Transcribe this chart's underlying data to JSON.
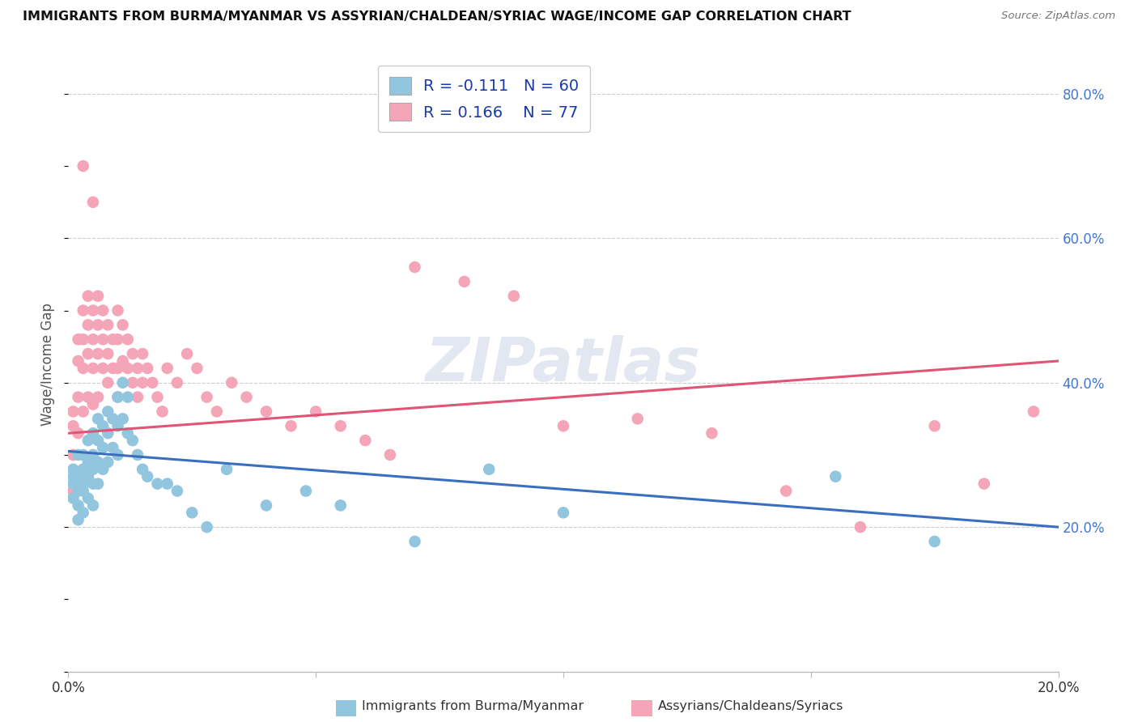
{
  "title": "IMMIGRANTS FROM BURMA/MYANMAR VS ASSYRIAN/CHALDEAN/SYRIAC WAGE/INCOME GAP CORRELATION CHART",
  "source": "Source: ZipAtlas.com",
  "ylabel": "Wage/Income Gap",
  "xlim": [
    0.0,
    0.2
  ],
  "ylim": [
    0.0,
    0.85
  ],
  "right_yticks": [
    0.2,
    0.4,
    0.6,
    0.8
  ],
  "right_yticklabels": [
    "20.0%",
    "40.0%",
    "60.0%",
    "80.0%"
  ],
  "xticks": [
    0.0,
    0.05,
    0.1,
    0.15,
    0.2
  ],
  "xticklabels": [
    "0.0%",
    "",
    "",
    "",
    "20.0%"
  ],
  "blue_R": -0.111,
  "blue_N": 60,
  "pink_R": 0.166,
  "pink_N": 77,
  "blue_color": "#92c5de",
  "pink_color": "#f4a6b8",
  "blue_line_color": "#3a6fbf",
  "pink_line_color": "#e05575",
  "watermark": "ZIPatlas",
  "blue_scatter_x": [
    0.001,
    0.001,
    0.001,
    0.001,
    0.002,
    0.002,
    0.002,
    0.002,
    0.002,
    0.003,
    0.003,
    0.003,
    0.003,
    0.003,
    0.004,
    0.004,
    0.004,
    0.004,
    0.005,
    0.005,
    0.005,
    0.005,
    0.005,
    0.006,
    0.006,
    0.006,
    0.006,
    0.007,
    0.007,
    0.007,
    0.008,
    0.008,
    0.008,
    0.009,
    0.009,
    0.01,
    0.01,
    0.01,
    0.011,
    0.011,
    0.012,
    0.012,
    0.013,
    0.014,
    0.015,
    0.016,
    0.018,
    0.02,
    0.022,
    0.025,
    0.028,
    0.032,
    0.04,
    0.048,
    0.055,
    0.07,
    0.085,
    0.1,
    0.155,
    0.175
  ],
  "blue_scatter_y": [
    0.28,
    0.27,
    0.26,
    0.24,
    0.3,
    0.27,
    0.25,
    0.23,
    0.21,
    0.3,
    0.28,
    0.26,
    0.25,
    0.22,
    0.32,
    0.29,
    0.27,
    0.24,
    0.33,
    0.3,
    0.28,
    0.26,
    0.23,
    0.35,
    0.32,
    0.29,
    0.26,
    0.34,
    0.31,
    0.28,
    0.36,
    0.33,
    0.29,
    0.35,
    0.31,
    0.38,
    0.34,
    0.3,
    0.4,
    0.35,
    0.38,
    0.33,
    0.32,
    0.3,
    0.28,
    0.27,
    0.26,
    0.26,
    0.25,
    0.22,
    0.2,
    0.28,
    0.23,
    0.25,
    0.23,
    0.18,
    0.28,
    0.22,
    0.27,
    0.18
  ],
  "pink_scatter_x": [
    0.001,
    0.001,
    0.001,
    0.001,
    0.002,
    0.002,
    0.002,
    0.002,
    0.003,
    0.003,
    0.003,
    0.003,
    0.004,
    0.004,
    0.004,
    0.004,
    0.005,
    0.005,
    0.005,
    0.005,
    0.006,
    0.006,
    0.006,
    0.006,
    0.007,
    0.007,
    0.007,
    0.008,
    0.008,
    0.008,
    0.009,
    0.009,
    0.01,
    0.01,
    0.01,
    0.01,
    0.011,
    0.011,
    0.012,
    0.012,
    0.013,
    0.013,
    0.014,
    0.014,
    0.015,
    0.015,
    0.016,
    0.017,
    0.018,
    0.019,
    0.02,
    0.022,
    0.024,
    0.026,
    0.028,
    0.03,
    0.033,
    0.036,
    0.04,
    0.045,
    0.05,
    0.055,
    0.06,
    0.065,
    0.07,
    0.08,
    0.09,
    0.1,
    0.115,
    0.13,
    0.145,
    0.16,
    0.175,
    0.185,
    0.195,
    0.005,
    0.003
  ],
  "pink_scatter_y": [
    0.36,
    0.34,
    0.3,
    0.25,
    0.46,
    0.43,
    0.38,
    0.33,
    0.5,
    0.46,
    0.42,
    0.36,
    0.52,
    0.48,
    0.44,
    0.38,
    0.5,
    0.46,
    0.42,
    0.37,
    0.52,
    0.48,
    0.44,
    0.38,
    0.5,
    0.46,
    0.42,
    0.48,
    0.44,
    0.4,
    0.46,
    0.42,
    0.5,
    0.46,
    0.42,
    0.38,
    0.48,
    0.43,
    0.46,
    0.42,
    0.44,
    0.4,
    0.42,
    0.38,
    0.44,
    0.4,
    0.42,
    0.4,
    0.38,
    0.36,
    0.42,
    0.4,
    0.44,
    0.42,
    0.38,
    0.36,
    0.4,
    0.38,
    0.36,
    0.34,
    0.36,
    0.34,
    0.32,
    0.3,
    0.56,
    0.54,
    0.52,
    0.34,
    0.35,
    0.33,
    0.25,
    0.2,
    0.34,
    0.26,
    0.36,
    0.65,
    0.7
  ]
}
